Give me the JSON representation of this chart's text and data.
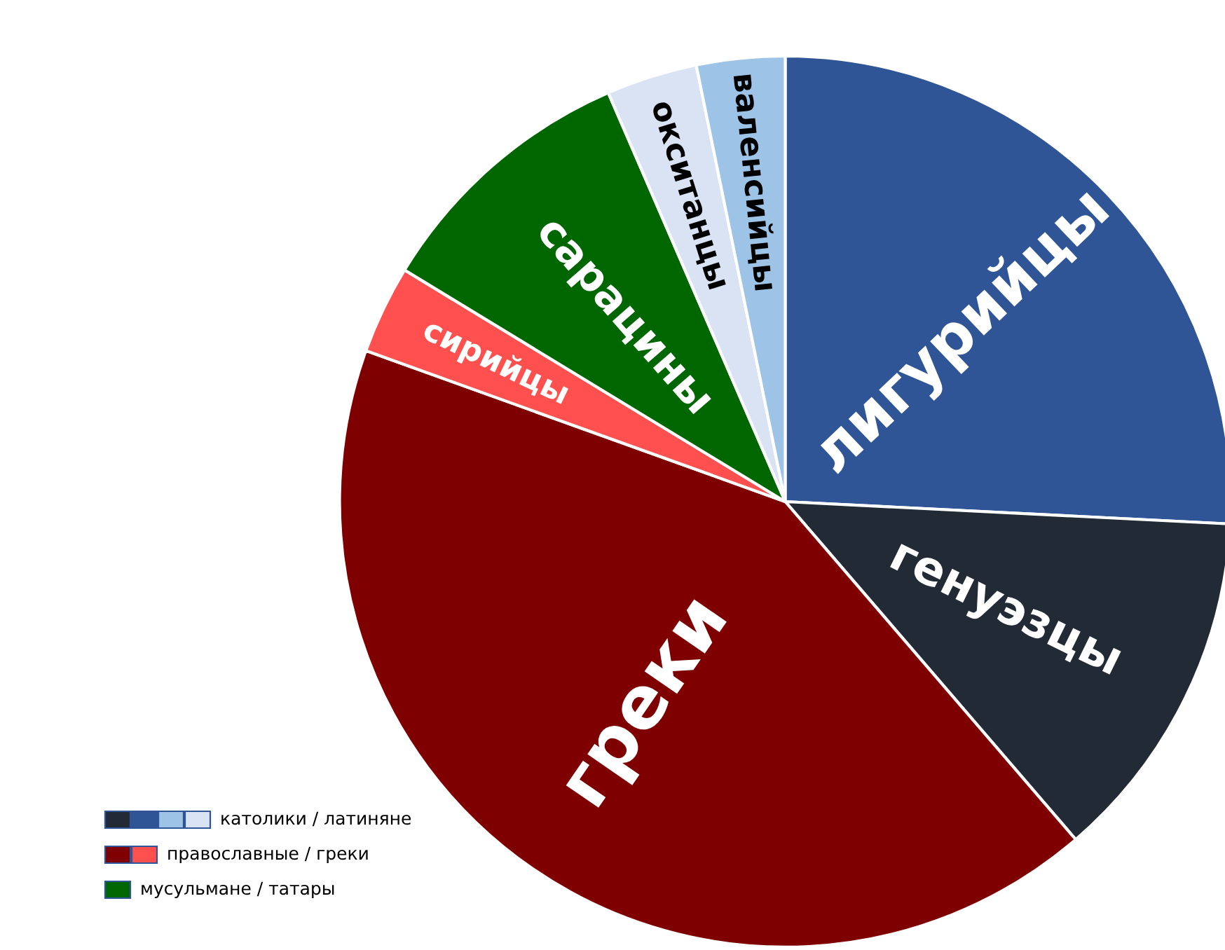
{
  "chart_data": {
    "type": "pie",
    "categories": [
      "лигурийцы",
      "генуэзцы",
      "греки",
      "сирийцы",
      "сарацины",
      "окситанцы",
      "валенсийцы"
    ],
    "values": [
      25.8,
      12.9,
      41.8,
      3.2,
      9.8,
      3.3,
      3.2
    ],
    "colors": [
      "#2f5597",
      "#222a35",
      "#7f0000",
      "#ff5050",
      "#006600",
      "#dae3f3",
      "#9dc3e6"
    ],
    "annotations": [
      "католики / латиняне",
      "православные / греки",
      "мусульмане / татары"
    ]
  }
}
